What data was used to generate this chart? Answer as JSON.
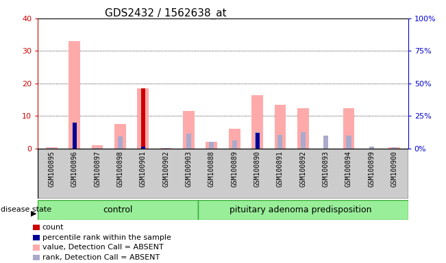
{
  "title": "GDS2432 / 1562638_at",
  "samples": [
    "GSM100895",
    "GSM100896",
    "GSM100897",
    "GSM100898",
    "GSM100901",
    "GSM100902",
    "GSM100903",
    "GSM100888",
    "GSM100889",
    "GSM100890",
    "GSM100891",
    "GSM100892",
    "GSM100893",
    "GSM100894",
    "GSM100899",
    "GSM100900"
  ],
  "control_count": 7,
  "group1_label": "control",
  "group2_label": "pituitary adenoma predisposition",
  "ylim_left": [
    0,
    40
  ],
  "ylim_right": [
    0,
    100
  ],
  "yticks_left": [
    0,
    10,
    20,
    30,
    40
  ],
  "yticks_right": [
    0,
    25,
    50,
    75,
    100
  ],
  "ytick_labels_left": [
    "0",
    "10",
    "20",
    "30",
    "40"
  ],
  "ytick_labels_right": [
    "0%",
    "25%",
    "50%",
    "75%",
    "100%"
  ],
  "count_values": [
    0,
    0,
    0,
    0,
    18.5,
    0,
    0,
    0,
    0,
    0,
    0,
    0,
    0,
    0,
    0,
    0
  ],
  "rank_values": [
    0,
    20,
    0,
    0,
    1.5,
    0,
    0,
    0,
    0,
    12,
    0,
    0,
    0,
    0,
    0,
    0
  ],
  "value_absent": [
    0.5,
    33,
    1.0,
    7.5,
    18.5,
    0.3,
    11.5,
    2.0,
    6.0,
    16.5,
    13.5,
    12.5,
    0,
    12.5,
    0,
    0.5
  ],
  "rank_absent": [
    0.5,
    0,
    0.5,
    9.5,
    0,
    0.5,
    11.5,
    5.0,
    6.5,
    12.5,
    10.5,
    12.5,
    10.0,
    10.0,
    1.5,
    0.8
  ],
  "color_count": "#cc0000",
  "color_rank": "#000099",
  "color_value_absent": "#ffaaaa",
  "color_rank_absent": "#aaaacc",
  "bg_label": "#cccccc",
  "bg_group": "#99ee99",
  "label_fontsize": 7,
  "title_fontsize": 11,
  "group_fontsize": 9,
  "legend_fontsize": 8,
  "axis_color_left": "#cc0000",
  "axis_color_right": "#0000cc"
}
